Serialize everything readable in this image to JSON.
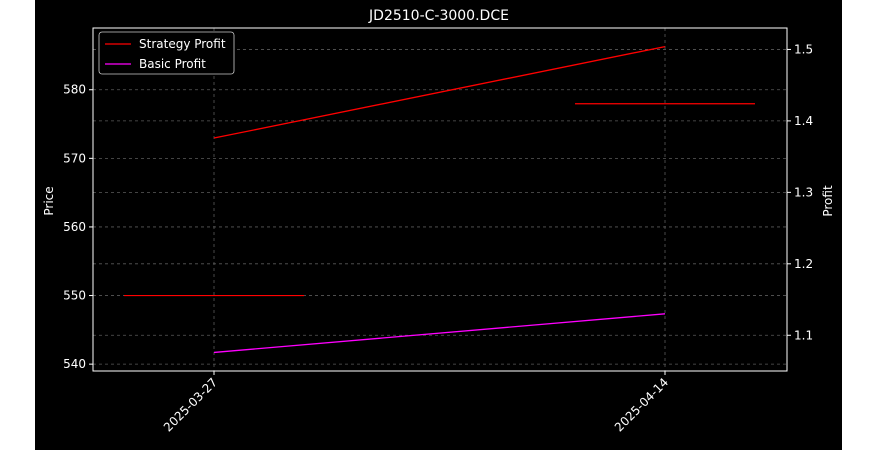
{
  "chart_data": {
    "type": "line",
    "title": "JD2510-C-3000.DCE",
    "x_ticks": [
      "2025-03-27",
      "2025-04-14"
    ],
    "left_axis": {
      "label": "Price",
      "ticks": [
        540,
        550,
        560,
        570,
        580
      ],
      "range": [
        539,
        589
      ]
    },
    "right_axis": {
      "label": "Profit",
      "ticks": [
        1.1,
        1.2,
        1.3,
        1.4,
        1.5
      ],
      "range": [
        1.05,
        1.53
      ]
    },
    "grid": true,
    "legend_position": "top-left",
    "series": [
      {
        "name": "Strategy Profit",
        "color": "#ff0000",
        "axis": "right",
        "x": [
          "2025-03-27",
          "2025-04-14"
        ],
        "values": [
          1.376,
          1.504
        ]
      },
      {
        "name": "Basic Profit",
        "color": "#ff00ff",
        "axis": "right",
        "x": [
          "2025-03-27",
          "2025-04-14"
        ],
        "values": [
          1.076,
          1.13
        ]
      }
    ],
    "price_markers": [
      {
        "date": "2025-03-27",
        "value": 550,
        "axis": "left",
        "color": "#ff0000"
      },
      {
        "date": "2025-04-14",
        "value": 1.424,
        "axis": "right",
        "color": "#ff0000"
      }
    ]
  }
}
